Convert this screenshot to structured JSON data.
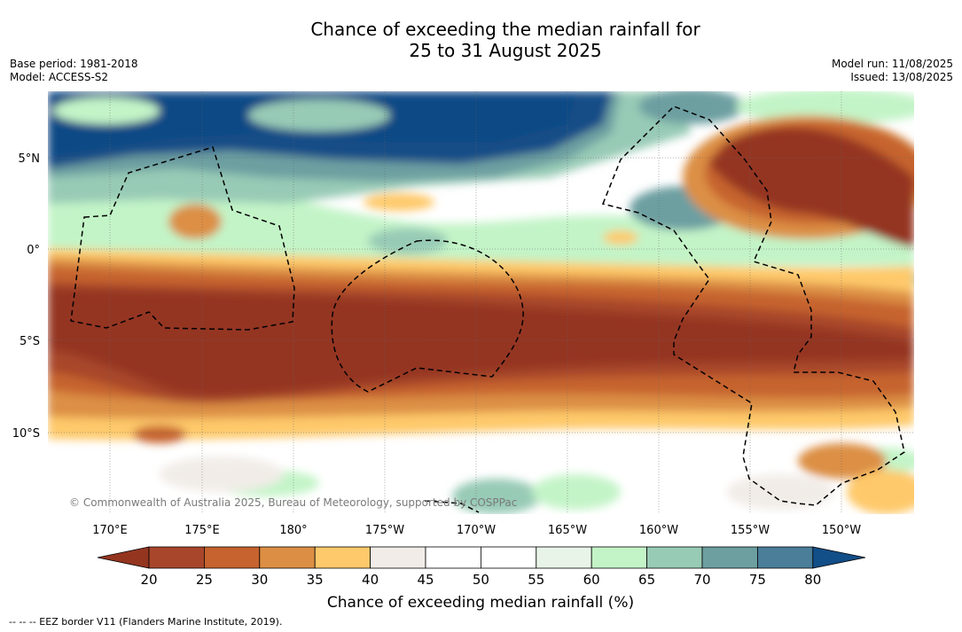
{
  "title": {
    "line1": "Chance of exceeding the median rainfall for",
    "line2": "25 to 31 August 2025"
  },
  "meta_left": {
    "base_period": "Base period: 1981-2018",
    "model": "Model: ACCESS-S2"
  },
  "meta_right": {
    "model_run": "Model run: 11/08/2025",
    "issued": "Issued: 13/08/2025"
  },
  "map": {
    "lat_labels": [
      "5°N",
      "0°",
      "5°S",
      "10°S"
    ],
    "lon_labels": [
      "170°E",
      "175°E",
      "180°",
      "175°W",
      "170°W",
      "165°W",
      "160°W",
      "155°W",
      "150°W"
    ],
    "watermark": "© Commonwealth of Australia 2025, Bureau of Meteorology, supported by COSPPac",
    "gridlines": true
  },
  "colorbar": {
    "ticks": [
      "20",
      "25",
      "30",
      "35",
      "40",
      "45",
      "50",
      "55",
      "60",
      "65",
      "70",
      "75",
      "80"
    ],
    "colors": [
      "#a8462b",
      "#c6632f",
      "#dc8f44",
      "#fec96b",
      "#f1ece7",
      "#ffffff",
      "#ffffff",
      "#e8f4e8",
      "#c3f4c7",
      "#98cbb6",
      "#6d9fa1",
      "#4a7e99"
    ],
    "under_color": "#943520",
    "over_color": "#124e87",
    "label": "Chance of exceeding median rainfall (%)"
  },
  "footer": {
    "legend": "--  --  -- EEZ border V11 (Flanders Marine Institute, 2019)."
  }
}
